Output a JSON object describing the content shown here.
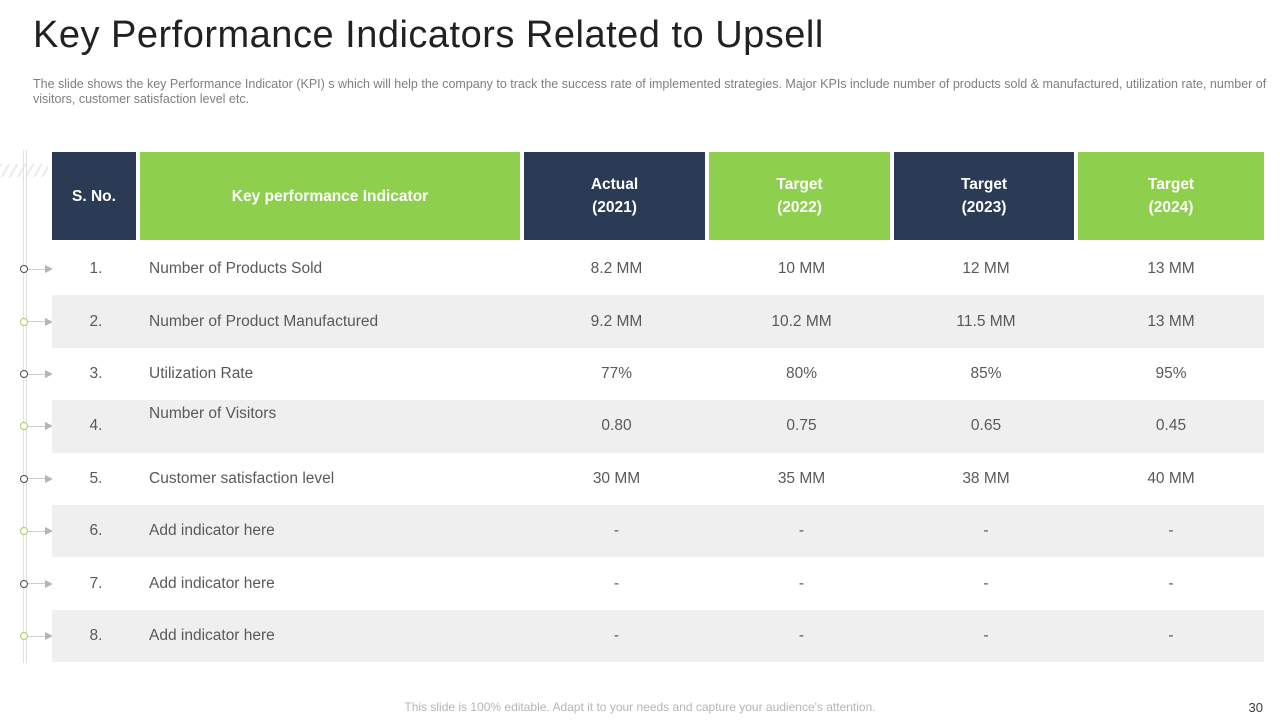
{
  "slide": {
    "title": "Key Performance Indicators Related to Upsell",
    "subtitle": "The slide shows the key Performance Indicator (KPI) s which will help the company to track the success rate of implemented strategies. Major KPIs include number of products sold & manufactured, utilization rate, number of visitors, customer satisfaction level etc.",
    "footer_note": "This slide is 100% editable. Adapt it to your needs and capture your audience's attention.",
    "page_number": "30"
  },
  "colors": {
    "navy": "#2b3b55",
    "green": "#8ed04e",
    "row_alt": "#efefef",
    "body_text": "#595959",
    "header_text": "#ffffff",
    "subtitle_text": "#7f7f7f",
    "footer_text": "#b5b5b5",
    "connector_dark": "#4a4a4a",
    "connector_green": "#a5ce63"
  },
  "table": {
    "columns": [
      {
        "line1": "S. No.",
        "line2": "",
        "theme": "navy"
      },
      {
        "line1": "Key performance Indicator",
        "line2": "",
        "theme": "green"
      },
      {
        "line1": "Actual",
        "line2": "(2021)",
        "theme": "navy"
      },
      {
        "line1": "Target",
        "line2": "(2022)",
        "theme": "green"
      },
      {
        "line1": "Target",
        "line2": "(2023)",
        "theme": "navy"
      },
      {
        "line1": "Target",
        "line2": "(2024)",
        "theme": "green"
      }
    ],
    "rows": [
      {
        "sno": "1.",
        "indicator": "Number of Products Sold",
        "values": [
          "8.2 MM",
          "10 MM",
          "12 MM",
          "13 MM"
        ]
      },
      {
        "sno": "2.",
        "indicator": "Number of Product Manufactured",
        "values": [
          "9.2 MM",
          "10.2 MM",
          "11.5 MM",
          "13 MM"
        ]
      },
      {
        "sno": "3.",
        "indicator": "Utilization  Rate",
        "values": [
          "77%",
          "80%",
          "85%",
          "95%"
        ]
      },
      {
        "sno": "4.",
        "indicator": "Number of Visitors",
        "values": [
          "0.80",
          "0.75",
          "0.65",
          "0.45"
        ],
        "label_align": "top"
      },
      {
        "sno": "5.",
        "indicator": "Customer satisfaction level",
        "values": [
          "30 MM",
          "35 MM",
          "38 MM",
          "40 MM"
        ]
      },
      {
        "sno": "6.",
        "indicator": "Add indicator here",
        "values": [
          "-",
          "-",
          "-",
          "-"
        ]
      },
      {
        "sno": "7.",
        "indicator": "Add indicator here",
        "values": [
          "-",
          "-",
          "-",
          "-"
        ]
      },
      {
        "sno": "8.",
        "indicator": "Add indicator here",
        "values": [
          "-",
          "-",
          "-",
          "-"
        ]
      }
    ]
  }
}
